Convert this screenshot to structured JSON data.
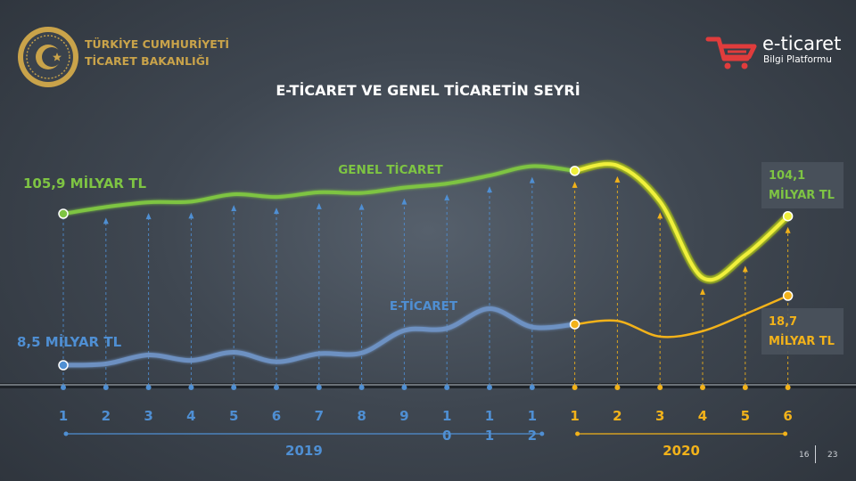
{
  "header": {
    "ministry_line1": "TÜRKİYE CUMHURİYETİ",
    "ministry_line2": "TİCARET BAKANLIĞI",
    "brand_name": "e-ticaret",
    "brand_sub": "Bilgi Platformu",
    "seal_icon": "ministry-seal-icon",
    "brand_icon": "shopping-cart-icon"
  },
  "page": {
    "current": "16",
    "total": "23"
  },
  "colors": {
    "green": "#7ec443",
    "glow_yellow": "#f0f03a",
    "blue": "#4f8fd3",
    "blue_line": "#6f95c8",
    "orange": "#f2b21a",
    "ministry_gold": "#c9a34a",
    "brand_red": "#e03c3c"
  },
  "chart_data": {
    "type": "line",
    "title": "E-TİCARET VE GENEL TİCARETİN SEYRİ",
    "categories": [
      "1",
      "2",
      "3",
      "4",
      "5",
      "6",
      "7",
      "8",
      "9",
      "10",
      "11",
      "12",
      "1",
      "2",
      "3",
      "4",
      "5",
      "6"
    ],
    "category_display": [
      "1",
      "2",
      "3",
      "4",
      "5",
      "6",
      "7",
      "8",
      "9",
      "1\n0",
      "1\n1",
      "1\n2",
      "1",
      "2",
      "3",
      "4",
      "5",
      "6"
    ],
    "year_groups": [
      {
        "label": "2019",
        "from": 0,
        "to": 11,
        "color": "#4f8fd3"
      },
      {
        "label": "2020",
        "from": 12,
        "to": 17,
        "color": "#f2b21a"
      }
    ],
    "series": [
      {
        "name": "GENEL TİCARET",
        "unit": "MİLYAR TL",
        "values": [
          105.9,
          111.0,
          114.5,
          115.0,
          120.5,
          118.5,
          122.0,
          121.5,
          125.5,
          128.5,
          134.5,
          141.5,
          138.0,
          142.0,
          115.0,
          58.0,
          75.0,
          104.1
        ],
        "start_label": "105,9 MİLYAR TL",
        "end_label_value": "104,1",
        "end_label_unit": "MİLYAR TL"
      },
      {
        "name": "E-TİCARET",
        "unit": "MİLYAR TL",
        "values": [
          8.5,
          8.7,
          10.0,
          9.2,
          10.4,
          9.0,
          10.2,
          10.3,
          13.6,
          13.9,
          16.8,
          14.1,
          14.5,
          15.0,
          12.7,
          13.5,
          16.0,
          18.7
        ],
        "start_label": "8,5 MİLYAR TL",
        "end_label_value": "18,7",
        "end_label_unit": "MİLYAR TL"
      }
    ],
    "grid": false,
    "legend": "inline-labels"
  }
}
